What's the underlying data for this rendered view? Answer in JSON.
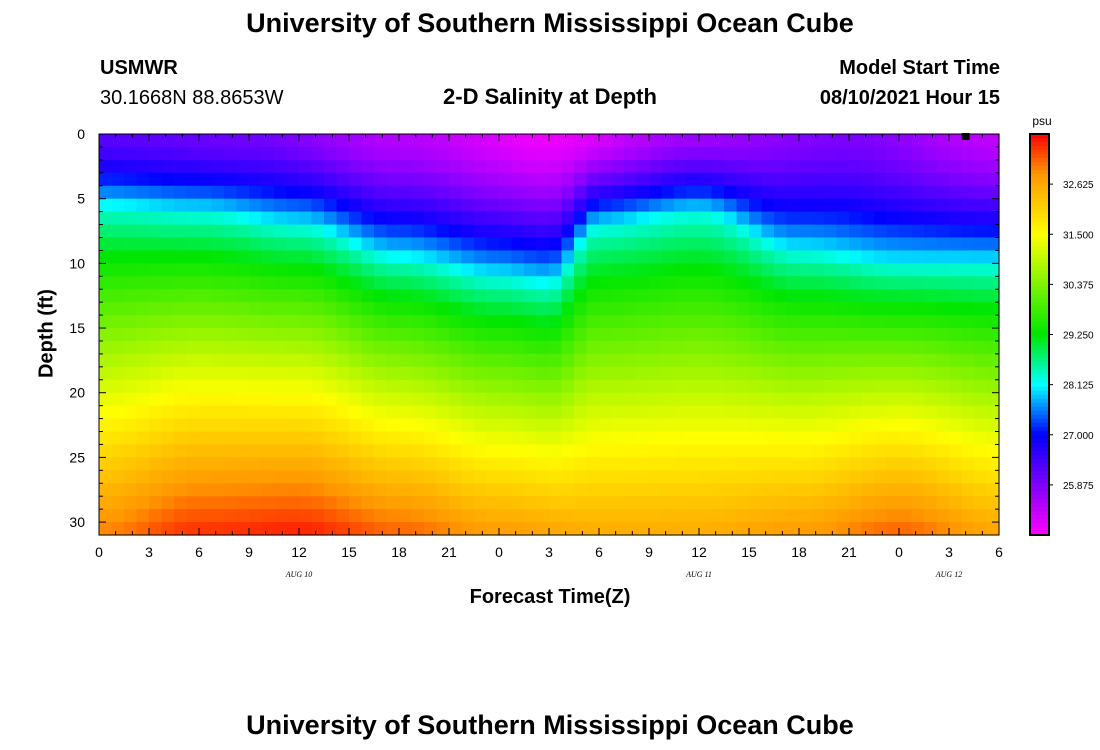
{
  "header": {
    "top_title": "University of Southern Mississippi Ocean Cube",
    "station": "USMWR",
    "coordinates": "30.1668N  88.8653W",
    "plot_title": "2-D Salinity at Depth",
    "model_start_label": "Model Start Time",
    "model_start_value": "08/10/2021 Hour 15"
  },
  "footer": {
    "bottom_title": "University of Southern Mississippi Ocean Cube"
  },
  "chart_data": {
    "type": "heatmap",
    "title": "2-D Salinity at Depth",
    "xlabel": "Forecast Time(Z)",
    "ylabel": "Depth (ft)",
    "x_hours_range": [
      0,
      54
    ],
    "ylim": [
      0,
      31
    ],
    "y_inverted": true,
    "x_tick_labels": [
      "0",
      "3",
      "6",
      "9",
      "12",
      "15",
      "18",
      "21",
      "0",
      "3",
      "6",
      "9",
      "12",
      "15",
      "18",
      "21",
      "0",
      "3",
      "6"
    ],
    "x_tick_hours": [
      0,
      3,
      6,
      9,
      12,
      15,
      18,
      21,
      24,
      27,
      30,
      33,
      36,
      39,
      42,
      45,
      48,
      51,
      54
    ],
    "y_ticks": [
      0,
      5,
      10,
      15,
      20,
      25,
      30
    ],
    "date_labels": [
      {
        "text": "AUG 10",
        "hour": 12
      },
      {
        "text": "AUG 11",
        "hour": 36
      },
      {
        "text": "AUG 12",
        "hour": 51
      }
    ],
    "colorbar": {
      "unit": "psu",
      "min": 24.75,
      "max": 33.75,
      "tick_values": [
        25.875,
        27.0,
        28.125,
        29.25,
        30.375,
        31.5,
        32.625
      ],
      "tick_labels": [
        "25.875",
        "27.000",
        "28.125",
        "29.250",
        "30.375",
        "31.500",
        "32.625"
      ]
    },
    "series": [
      {
        "name": "Surface (0 ft) salinity",
        "hours": [
          0,
          9,
          18,
          27,
          36,
          45,
          54
        ],
        "values": [
          26.2,
          26.0,
          25.4,
          24.9,
          25.6,
          25.9,
          25.3
        ]
      },
      {
        "name": "Halocline (28.125 psu) depth ft",
        "hours": [
          0,
          6,
          12,
          18,
          24,
          27,
          30,
          36,
          42,
          48,
          54
        ],
        "values": [
          5.5,
          6.0,
          7.0,
          9.5,
          11.0,
          11.5,
          7.0,
          6.0,
          9.0,
          10.0,
          10.0
        ]
      },
      {
        "name": "Bottom (31 ft) salinity",
        "hours": [
          0,
          6,
          12,
          18,
          24,
          30,
          36,
          42,
          48,
          54
        ],
        "values": [
          33.0,
          33.5,
          33.6,
          33.2,
          32.8,
          32.6,
          32.6,
          32.8,
          33.2,
          32.7
        ]
      }
    ],
    "marker": {
      "hour": 52,
      "depth": 0,
      "shape": "square"
    }
  }
}
